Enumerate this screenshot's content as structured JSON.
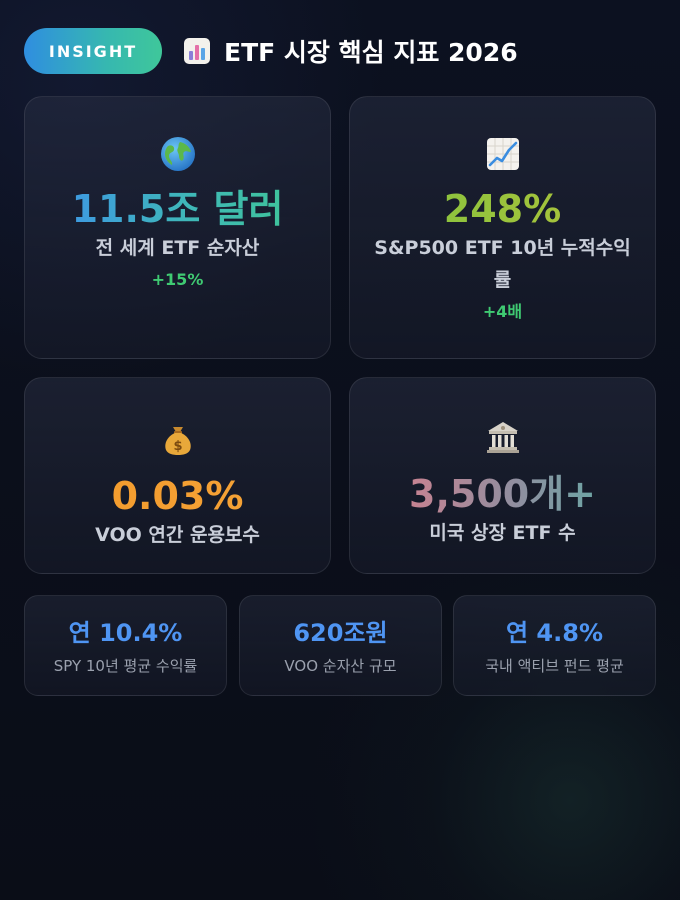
{
  "header": {
    "badge": "INSIGHT",
    "title_icon": "bar-chart-icon",
    "title": "ETF 시장 핵심 지표 2026"
  },
  "cards": [
    {
      "icon": "globe-icon",
      "value": "11.5조 달러",
      "label": "전 세계 ETF 순자산",
      "change": "+15%",
      "value_color": "#3d8ef0"
    },
    {
      "icon": "chart-up-icon",
      "value": "248%",
      "label": "S&P500 ETF 10년 누적수익률",
      "change": "+4배",
      "value_color": "#7cc43f"
    },
    {
      "icon": "money-bag-icon",
      "value": "0.03%",
      "label": "VOO 연간 운용보수",
      "value_color": "#f59a2a"
    },
    {
      "icon": "bank-icon",
      "value": "3,500개+",
      "label": "미국 상장 ETF 수",
      "value_color": "#e57c8a"
    }
  ],
  "mini_stats": [
    {
      "value": "연 10.4%",
      "label": "SPY 10년 평균 수익률"
    },
    {
      "value": "620조원",
      "label": "VOO 순자산 규모"
    },
    {
      "value": "연 4.8%",
      "label": "국내 액티브 펀드 평균"
    }
  ],
  "colors": {
    "positive": "#3fca72",
    "mini_value": "#4f95f3",
    "accent_start": "#2f8ee0",
    "accent_end": "#3fc79a"
  }
}
